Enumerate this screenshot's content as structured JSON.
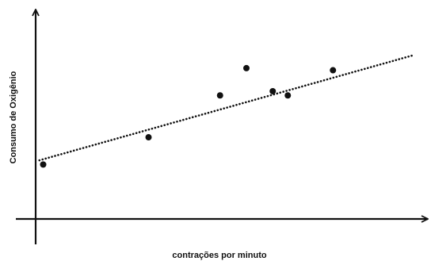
{
  "chart_data": {
    "type": "scatter",
    "title": "",
    "xlabel": "contrações por minuto",
    "ylabel": "Consumo de Oxigênio",
    "grid": false,
    "legend": "none",
    "tick_labels": "none",
    "xlim": [
      0,
      100
    ],
    "ylim": [
      0,
      100
    ],
    "points": [
      {
        "x": 2,
        "y": 26
      },
      {
        "x": 30,
        "y": 39
      },
      {
        "x": 49,
        "y": 59
      },
      {
        "x": 56,
        "y": 72
      },
      {
        "x": 63,
        "y": 61
      },
      {
        "x": 67,
        "y": 59
      },
      {
        "x": 79,
        "y": 71
      }
    ],
    "trendline": {
      "style": "dotted",
      "from": {
        "x": 1,
        "y": 28
      },
      "to": {
        "x": 100,
        "y": 78
      }
    },
    "colors": {
      "points": "#111111",
      "axes": "#111111",
      "trendline": "#111111"
    }
  }
}
